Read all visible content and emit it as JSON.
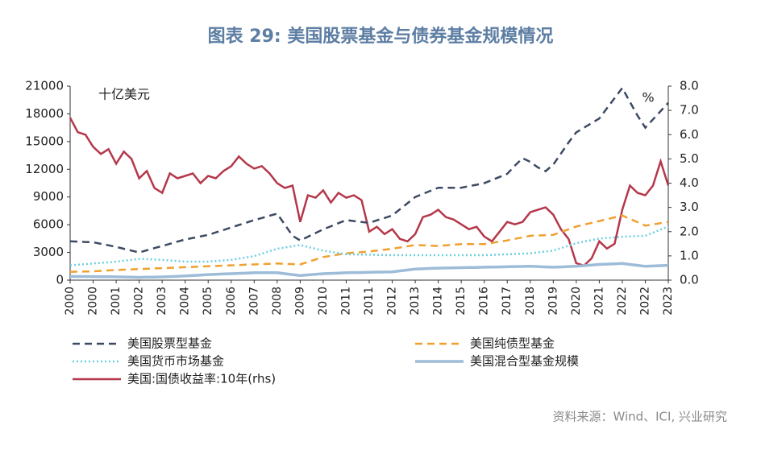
{
  "chart_data": {
    "type": "line",
    "title": "图表 29: 美国股票基金与债券基金规模情况",
    "y_unit_label": "十亿美元",
    "y2_unit_label": "%",
    "source": "资料来源：Wind、ICI, 兴业研究",
    "categories": [
      "2000",
      null,
      null,
      "2000",
      null,
      null,
      "2001",
      null,
      null,
      "2002",
      null,
      null,
      "2003",
      null,
      null,
      "2004",
      null,
      null,
      "2005",
      null,
      null,
      "2006",
      null,
      null,
      "2007",
      null,
      null,
      "2008",
      null,
      null,
      "2009",
      null,
      null,
      "2010",
      null,
      null,
      "2011",
      null,
      null,
      "2011",
      null,
      null,
      "2012",
      null,
      null,
      "2013",
      null,
      null,
      "2014",
      null,
      null,
      "2015",
      null,
      null,
      "2016",
      null,
      null,
      "2017",
      null,
      null,
      "2018",
      null,
      null,
      "2019",
      null,
      null,
      "2020",
      null,
      null,
      "2021",
      null,
      null,
      "2022",
      null,
      null,
      "2022",
      null,
      null,
      "2023"
    ],
    "ylim": [
      0,
      21000
    ],
    "yticks": [
      0,
      3000,
      6000,
      9000,
      12000,
      15000,
      18000,
      21000
    ],
    "y2lim": [
      0,
      8
    ],
    "y2ticks": [
      {
        "value": 0,
        "label": "0.0"
      },
      {
        "value": 1,
        "label": "1.0"
      },
      {
        "value": 2,
        "label": "2.0"
      },
      {
        "value": 3,
        "label": "3.0"
      },
      {
        "value": 4,
        "label": "4.0"
      },
      {
        "value": 5,
        "label": "5.0"
      },
      {
        "value": 6,
        "label": "6.0"
      },
      {
        "value": 7,
        "label": "7.0"
      },
      {
        "value": 8,
        "label": "8.0"
      }
    ],
    "series": [
      {
        "name": "美国股票型基金",
        "color": "#3d4a63",
        "style": "dashed",
        "values": [
          4200,
          4170,
          4130,
          4100,
          3930,
          3770,
          3600,
          3400,
          3200,
          3000,
          3230,
          3470,
          3700,
          3930,
          4170,
          4400,
          4570,
          4730,
          4900,
          5170,
          5430,
          5700,
          5970,
          6230,
          6500,
          6730,
          6970,
          7200,
          6000,
          4800,
          4300,
          4700,
          5100,
          5500,
          5830,
          6170,
          6500,
          6400,
          6300,
          6200,
          6470,
          6730,
          7000,
          7670,
          8330,
          9000,
          9330,
          9670,
          10000,
          10000,
          10000,
          10000,
          10170,
          10330,
          10500,
          10830,
          11170,
          11500,
          12400,
          13200,
          12800,
          12200,
          11800,
          12500,
          13700,
          14900,
          16000,
          16500,
          17000,
          17500,
          18600,
          19700,
          20800,
          19300,
          17800,
          16500,
          17400,
          18300,
          19200
        ]
      },
      {
        "name": "美国纯债型基金",
        "color": "#f0a030",
        "style": "dashed",
        "values": [
          900,
          920,
          930,
          950,
          1000,
          1050,
          1100,
          1130,
          1170,
          1200,
          1230,
          1270,
          1300,
          1330,
          1370,
          1400,
          1430,
          1470,
          1500,
          1530,
          1570,
          1600,
          1630,
          1670,
          1700,
          1730,
          1770,
          1800,
          1770,
          1730,
          1700,
          1970,
          2230,
          2500,
          2630,
          2770,
          2900,
          2970,
          3030,
          3100,
          3200,
          3300,
          3400,
          3530,
          3670,
          3800,
          3770,
          3730,
          3700,
          3770,
          3830,
          3900,
          3900,
          3900,
          3900,
          4030,
          4170,
          4300,
          4470,
          4630,
          4800,
          4830,
          4870,
          4900,
          5200,
          5500,
          5800,
          6000,
          6200,
          6400,
          6600,
          6800,
          7000,
          6630,
          6270,
          5900,
          6030,
          6170,
          6300
        ]
      },
      {
        "name": "美国货币市场基金",
        "color": "#6dcfe0",
        "style": "dotted",
        "values": [
          1600,
          1670,
          1730,
          1800,
          1870,
          1930,
          2000,
          2100,
          2200,
          2300,
          2270,
          2230,
          2200,
          2130,
          2070,
          2000,
          2000,
          2000,
          2000,
          2070,
          2130,
          2200,
          2330,
          2470,
          2600,
          2870,
          3130,
          3400,
          3530,
          3670,
          3800,
          3600,
          3400,
          3200,
          3070,
          2930,
          2800,
          2780,
          2770,
          2750,
          2730,
          2720,
          2700,
          2700,
          2700,
          2700,
          2700,
          2700,
          2700,
          2700,
          2700,
          2700,
          2700,
          2700,
          2700,
          2730,
          2770,
          2800,
          2830,
          2870,
          2900,
          3000,
          3100,
          3200,
          3470,
          3730,
          4000,
          4170,
          4330,
          4500,
          4570,
          4630,
          4700,
          4730,
          4770,
          4800,
          5130,
          5470,
          5800
        ]
      },
      {
        "name": "美国混合型基金规模",
        "color": "#9dbcd8",
        "style": "thick",
        "values": [
          400,
          390,
          390,
          380,
          370,
          370,
          360,
          340,
          320,
          300,
          320,
          330,
          350,
          380,
          420,
          450,
          500,
          550,
          600,
          630,
          670,
          700,
          730,
          770,
          800,
          800,
          800,
          800,
          700,
          600,
          500,
          570,
          630,
          700,
          730,
          770,
          800,
          820,
          830,
          850,
          870,
          880,
          900,
          1000,
          1100,
          1200,
          1230,
          1270,
          1300,
          1320,
          1330,
          1350,
          1370,
          1380,
          1400,
          1420,
          1430,
          1450,
          1470,
          1480,
          1500,
          1470,
          1430,
          1400,
          1430,
          1470,
          1500,
          1570,
          1630,
          1700,
          1730,
          1770,
          1800,
          1700,
          1600,
          1500,
          1530,
          1570,
          1600
        ]
      },
      {
        "name": "美国:国债收益率:10年(rhs)",
        "color": "#b5374a",
        "style": "solid",
        "axis": "y2",
        "values": [
          6.7,
          6.1,
          6.0,
          5.5,
          5.2,
          5.4,
          4.8,
          5.3,
          5.0,
          4.2,
          4.5,
          3.8,
          3.6,
          4.4,
          4.2,
          4.3,
          4.4,
          4.0,
          4.3,
          4.2,
          4.5,
          4.7,
          5.1,
          4.8,
          4.6,
          4.7,
          4.4,
          4.0,
          3.8,
          3.9,
          2.4,
          3.5,
          3.4,
          3.7,
          3.2,
          3.6,
          3.4,
          3.5,
          3.3,
          2.0,
          2.2,
          1.9,
          2.1,
          1.7,
          1.6,
          1.9,
          2.6,
          2.7,
          2.9,
          2.6,
          2.5,
          2.3,
          2.1,
          2.2,
          1.8,
          1.6,
          2.0,
          2.4,
          2.3,
          2.4,
          2.8,
          2.9,
          3.0,
          2.7,
          2.1,
          1.7,
          0.7,
          0.6,
          0.9,
          1.6,
          1.3,
          1.5,
          2.9,
          3.9,
          3.6,
          3.5,
          3.9,
          4.9,
          3.9
        ]
      }
    ]
  }
}
